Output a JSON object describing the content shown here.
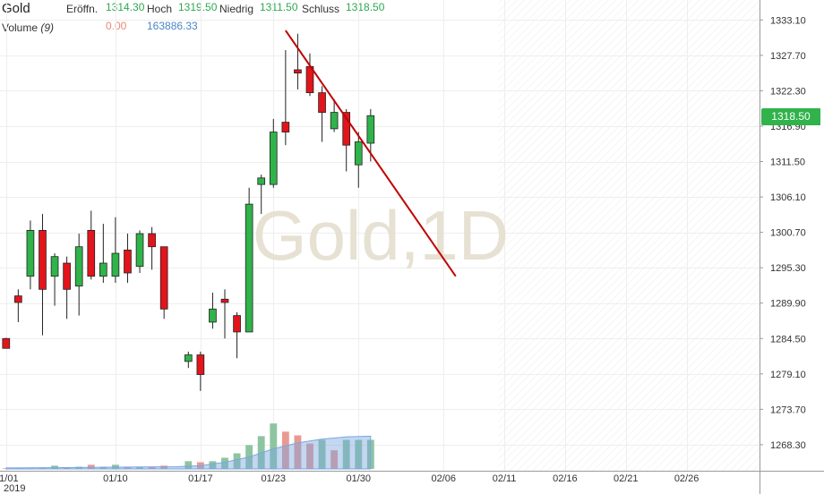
{
  "header": {
    "symbol": "Gold",
    "open_label": "Eröffn.",
    "open_value": "1314.30",
    "high_label": "Hoch",
    "high_value": "1319.50",
    "low_label": "Niedrig",
    "low_value": "1311.50",
    "close_label": "Schluss",
    "close_value": "1318.50",
    "volume_label": "Volume",
    "volume_param": "(9)",
    "volume_value_1": "0.00",
    "volume_value_2": "163886.33"
  },
  "price_tag": "1318.50",
  "colors": {
    "up": "#2fb34a",
    "down": "#e3141b",
    "trendline": "#c00000",
    "volume_up": "#8dc5a0",
    "volume_down": "#e89a92",
    "volume_ma": "#7aa6e0",
    "watermark": "#e6e1d2"
  },
  "chart_data": {
    "type": "candlestick",
    "watermark": "Gold,1D",
    "y_ticks": [
      1333.1,
      1327.7,
      1322.3,
      1316.9,
      1311.5,
      1306.1,
      1300.7,
      1295.3,
      1289.9,
      1284.5,
      1279.1,
      1273.7,
      1268.3
    ],
    "ylim": [
      1264.6,
      1335.6
    ],
    "x_tick_labels": [
      {
        "label": "01/01",
        "day": 0
      },
      {
        "label": "01/10",
        "day": 9
      },
      {
        "label": "01/17",
        "day": 16
      },
      {
        "label": "01/23",
        "day": 22
      },
      {
        "label": "01/30",
        "day": 29
      },
      {
        "label": "02/06",
        "day": 36
      },
      {
        "label": "02/11",
        "day": 41
      },
      {
        "label": "02/16",
        "day": 46
      },
      {
        "label": "02/21",
        "day": 51
      },
      {
        "label": "02/26",
        "day": 56
      }
    ],
    "year_label": "2019",
    "x_range_days": [
      -0.5,
      62
    ],
    "future_shade_from_day": 40.5,
    "candles": [
      {
        "day": 0,
        "open": 1284.5,
        "high": 1284.6,
        "low": 1283.0,
        "close": 1283.0
      },
      {
        "day": 1,
        "open": 1291.0,
        "high": 1292.0,
        "low": 1287.0,
        "close": 1290.0
      },
      {
        "day": 2,
        "open": 1294.0,
        "high": 1302.5,
        "low": 1292.0,
        "close": 1301.0
      },
      {
        "day": 3,
        "open": 1301.0,
        "high": 1303.5,
        "low": 1285.0,
        "close": 1292.0
      },
      {
        "day": 4,
        "open": 1294.0,
        "high": 1297.5,
        "low": 1289.5,
        "close": 1297.0
      },
      {
        "day": 5,
        "open": 1296.0,
        "high": 1297.0,
        "low": 1287.5,
        "close": 1292.0
      },
      {
        "day": 6,
        "open": 1292.5,
        "high": 1300.5,
        "low": 1288.0,
        "close": 1298.5
      },
      {
        "day": 7,
        "open": 1301.0,
        "high": 1304.0,
        "low": 1293.5,
        "close": 1294.0
      },
      {
        "day": 8,
        "open": 1294.0,
        "high": 1302.0,
        "low": 1293.0,
        "close": 1296.0
      },
      {
        "day": 9,
        "open": 1294.0,
        "high": 1303.0,
        "low": 1293.0,
        "close": 1297.5
      },
      {
        "day": 10,
        "open": 1298.0,
        "high": 1300.5,
        "low": 1293.0,
        "close": 1294.5
      },
      {
        "day": 11,
        "open": 1295.5,
        "high": 1301.0,
        "low": 1294.5,
        "close": 1300.5
      },
      {
        "day": 12,
        "open": 1300.5,
        "high": 1301.5,
        "low": 1295.0,
        "close": 1298.5
      },
      {
        "day": 13,
        "open": 1298.5,
        "high": 1298.5,
        "low": 1287.5,
        "close": 1289.0
      },
      {
        "day": 15,
        "open": 1281.0,
        "high": 1282.5,
        "low": 1280.0,
        "close": 1282.0
      },
      {
        "day": 16,
        "open": 1282.0,
        "high": 1282.5,
        "low": 1276.5,
        "close": 1279.0
      },
      {
        "day": 17,
        "open": 1287.0,
        "high": 1291.5,
        "low": 1286.0,
        "close": 1289.0
      },
      {
        "day": 18,
        "open": 1290.5,
        "high": 1292.0,
        "low": 1284.5,
        "close": 1290.0
      },
      {
        "day": 19,
        "open": 1288.0,
        "high": 1288.5,
        "low": 1281.5,
        "close": 1285.5
      },
      {
        "day": 20,
        "open": 1285.5,
        "high": 1307.5,
        "low": 1285.5,
        "close": 1305.0
      },
      {
        "day": 21,
        "open": 1308.0,
        "high": 1309.5,
        "low": 1303.5,
        "close": 1309.0
      },
      {
        "day": 22,
        "open": 1308.0,
        "high": 1318.0,
        "low": 1307.5,
        "close": 1316.0
      },
      {
        "day": 23,
        "open": 1317.5,
        "high": 1328.5,
        "low": 1314.0,
        "close": 1316.0
      },
      {
        "day": 24,
        "open": 1325.5,
        "high": 1331.0,
        "low": 1322.5,
        "close": 1325.0
      },
      {
        "day": 25,
        "open": 1326.0,
        "high": 1328.0,
        "low": 1321.5,
        "close": 1322.0
      },
      {
        "day": 26,
        "open": 1322.0,
        "high": 1323.0,
        "low": 1314.5,
        "close": 1319.0
      },
      {
        "day": 27,
        "open": 1316.5,
        "high": 1321.0,
        "low": 1316.0,
        "close": 1319.0
      },
      {
        "day": 28,
        "open": 1319.0,
        "high": 1319.5,
        "low": 1310.0,
        "close": 1314.0
      },
      {
        "day": 29,
        "open": 1311.0,
        "high": 1316.0,
        "low": 1307.5,
        "close": 1314.5
      },
      {
        "day": 30,
        "open": 1314.3,
        "high": 1319.5,
        "low": 1311.5,
        "close": 1318.5
      }
    ],
    "volume": {
      "label": "Volume (9)",
      "max": 36000,
      "bars": [
        {
          "day": 0,
          "value": 400,
          "up": false
        },
        {
          "day": 1,
          "value": 400,
          "up": true
        },
        {
          "day": 2,
          "value": 400,
          "up": true
        },
        {
          "day": 3,
          "value": 600,
          "up": false
        },
        {
          "day": 4,
          "value": 2200,
          "up": true
        },
        {
          "day": 5,
          "value": 900,
          "up": false
        },
        {
          "day": 6,
          "value": 1500,
          "up": true
        },
        {
          "day": 7,
          "value": 2800,
          "up": false
        },
        {
          "day": 8,
          "value": 1500,
          "up": true
        },
        {
          "day": 9,
          "value": 2800,
          "up": true
        },
        {
          "day": 10,
          "value": 1500,
          "up": false
        },
        {
          "day": 11,
          "value": 1500,
          "up": true
        },
        {
          "day": 12,
          "value": 1500,
          "up": false
        },
        {
          "day": 13,
          "value": 2200,
          "up": false
        },
        {
          "day": 15,
          "value": 5200,
          "up": true
        },
        {
          "day": 16,
          "value": 4500,
          "up": false
        },
        {
          "day": 17,
          "value": 5200,
          "up": true
        },
        {
          "day": 18,
          "value": 7500,
          "up": true
        },
        {
          "day": 19,
          "value": 10500,
          "up": true
        },
        {
          "day": 20,
          "value": 16000,
          "up": true
        },
        {
          "day": 21,
          "value": 22000,
          "up": true
        },
        {
          "day": 22,
          "value": 30500,
          "up": true
        },
        {
          "day": 23,
          "value": 25000,
          "up": false
        },
        {
          "day": 24,
          "value": 22500,
          "up": false
        },
        {
          "day": 25,
          "value": 17000,
          "up": false
        },
        {
          "day": 26,
          "value": 19500,
          "up": true
        },
        {
          "day": 27,
          "value": 12500,
          "up": false
        },
        {
          "day": 28,
          "value": 19500,
          "up": true
        },
        {
          "day": 29,
          "value": 19500,
          "up": true
        },
        {
          "day": 30,
          "value": 19500,
          "up": true
        }
      ],
      "ma": [
        {
          "day": 0,
          "value": 700
        },
        {
          "day": 5,
          "value": 900
        },
        {
          "day": 10,
          "value": 1300
        },
        {
          "day": 14,
          "value": 1500
        },
        {
          "day": 16,
          "value": 2200
        },
        {
          "day": 18,
          "value": 4500
        },
        {
          "day": 20,
          "value": 8000
        },
        {
          "day": 22,
          "value": 13500
        },
        {
          "day": 24,
          "value": 17500
        },
        {
          "day": 26,
          "value": 20000
        },
        {
          "day": 28,
          "value": 21500
        },
        {
          "day": 30,
          "value": 22000
        }
      ]
    },
    "trendline": {
      "start": {
        "day": 23,
        "price": 1331.5
      },
      "end": {
        "day": 37,
        "price": 1294.0
      }
    }
  }
}
